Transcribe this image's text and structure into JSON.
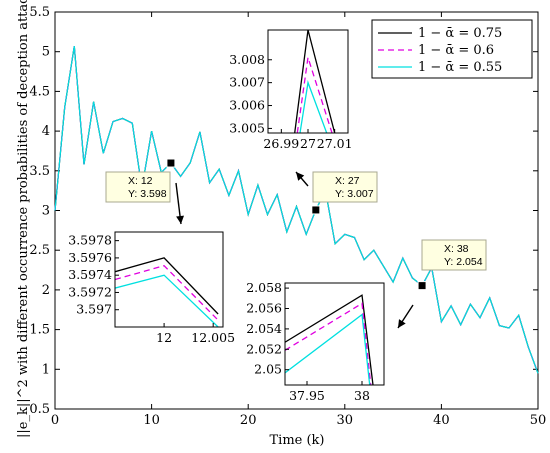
{
  "chart_data": {
    "type": "line",
    "xlabel": "Time (k)",
    "ylabel": "||e_k||^2 with different occurrence probabilities of deception attacks",
    "xlim": [
      0,
      50
    ],
    "ylim": [
      0.5,
      5.5
    ],
    "x_ticks": [
      "0",
      "10",
      "20",
      "30",
      "40",
      "50"
    ],
    "y_ticks": [
      "0.5",
      "1",
      "1.5",
      "2",
      "2.5",
      "3",
      "3.5",
      "4",
      "4.5",
      "5",
      "5.5"
    ],
    "x": [
      0,
      1,
      2,
      3,
      4,
      5,
      6,
      7,
      8,
      9,
      10,
      11,
      12,
      13,
      14,
      15,
      16,
      17,
      18,
      19,
      20,
      21,
      22,
      23,
      24,
      25,
      26,
      27,
      28,
      29,
      30,
      31,
      32,
      33,
      34,
      35,
      36,
      37,
      38,
      39,
      40,
      41,
      42,
      43,
      44,
      45,
      46,
      47,
      48,
      49,
      50
    ],
    "series": [
      {
        "name": "1 − ᾱ = 0.75",
        "color": "#000000",
        "dash": "solid",
        "values": [
          3.0,
          4.3,
          5.07,
          3.58,
          4.37,
          3.72,
          4.12,
          4.16,
          4.1,
          3.28,
          4.0,
          3.48,
          3.598,
          3.43,
          3.6,
          3.99,
          3.35,
          3.52,
          3.19,
          3.5,
          2.95,
          3.32,
          2.95,
          3.2,
          2.73,
          3.05,
          2.7,
          3.007,
          3.25,
          2.58,
          2.7,
          2.66,
          2.38,
          2.5,
          2.3,
          2.1,
          2.4,
          2.15,
          2.054,
          2.28,
          1.6,
          1.8,
          1.56,
          1.82,
          1.65,
          1.9,
          1.55,
          1.52,
          1.68,
          1.28,
          0.95
        ]
      },
      {
        "name": "1 − ᾱ = 0.6",
        "color": "#e000e0",
        "dash": "dashed",
        "values": [
          3.0,
          4.3,
          5.07,
          3.58,
          4.37,
          3.72,
          4.12,
          4.16,
          4.1,
          3.28,
          4.0,
          3.48,
          3.598,
          3.43,
          3.6,
          3.99,
          3.35,
          3.52,
          3.19,
          3.5,
          2.95,
          3.32,
          2.95,
          3.2,
          2.73,
          3.05,
          2.7,
          3.007,
          3.25,
          2.58,
          2.7,
          2.66,
          2.38,
          2.5,
          2.3,
          2.1,
          2.4,
          2.15,
          2.054,
          2.28,
          1.6,
          1.8,
          1.56,
          1.82,
          1.65,
          1.9,
          1.55,
          1.52,
          1.68,
          1.28,
          0.95
        ]
      },
      {
        "name": "1 − ᾱ = 0.55",
        "color": "#00e0e0",
        "dash": "solid",
        "values": [
          3.0,
          4.3,
          5.07,
          3.58,
          4.37,
          3.72,
          4.12,
          4.16,
          4.1,
          3.28,
          4.0,
          3.48,
          3.598,
          3.43,
          3.6,
          3.99,
          3.35,
          3.52,
          3.19,
          3.5,
          2.95,
          3.32,
          2.95,
          3.2,
          2.73,
          3.05,
          2.7,
          3.007,
          3.25,
          2.58,
          2.7,
          2.66,
          2.38,
          2.5,
          2.3,
          2.1,
          2.4,
          2.15,
          2.054,
          2.28,
          1.6,
          1.8,
          1.56,
          1.82,
          1.65,
          1.9,
          1.55,
          1.52,
          1.68,
          1.28,
          0.95
        ]
      }
    ],
    "legend_position": "top-right",
    "datatips": [
      {
        "x_label": "X: 12",
        "y_label": "Y: 3.598",
        "x": 12,
        "y": 3.598
      },
      {
        "x_label": "X: 27",
        "y_label": "Y: 3.007",
        "x": 27,
        "y": 3.007
      },
      {
        "x_label": "X: 38",
        "y_label": "Y: 2.054",
        "x": 38,
        "y": 2.054
      }
    ],
    "insets": [
      {
        "id": "inset-27",
        "x_ticks": [
          "26.99",
          "27",
          "27.01"
        ],
        "y_ticks": [
          "3.005",
          "3.006",
          "3.007",
          "3.008"
        ],
        "xlim": [
          26.985,
          27.015
        ],
        "ylim": [
          3.0048,
          3.0093
        ],
        "lines": [
          {
            "color": "#000000",
            "dash": "solid",
            "x": [
              26.995,
              27,
              27.01
            ],
            "y": [
              3.0048,
              3.0093,
              3.0048
            ]
          },
          {
            "color": "#e000e0",
            "dash": "dashed",
            "x": [
              26.996,
              27,
              27.009
            ],
            "y": [
              3.0048,
              3.0081,
              3.0048
            ]
          },
          {
            "color": "#00e0e0",
            "dash": "solid",
            "x": [
              26.997,
              27,
              27.007
            ],
            "y": [
              3.0048,
              3.007,
              3.0048
            ]
          }
        ]
      },
      {
        "id": "inset-12",
        "x_ticks": [
          "12",
          "12.005"
        ],
        "y_ticks": [
          "3.597",
          "3.5972",
          "3.5974",
          "3.5976",
          "3.5978"
        ],
        "xlim": [
          11.995,
          12.006
        ],
        "ylim": [
          3.5968,
          3.5979
        ],
        "lines": [
          {
            "color": "#000000",
            "dash": "solid",
            "x": [
              11.995,
              12,
              12.0055
            ],
            "y": [
              3.59744,
              3.5976,
              3.59695
            ]
          },
          {
            "color": "#e000e0",
            "dash": "dashed",
            "x": [
              11.995,
              12,
              12.0055
            ],
            "y": [
              3.59735,
              3.59751,
              3.59688
            ]
          },
          {
            "color": "#00e0e0",
            "dash": "solid",
            "x": [
              11.995,
              12,
              12.0055
            ],
            "y": [
              3.59725,
              3.5974,
              3.5968
            ]
          }
        ]
      },
      {
        "id": "inset-38",
        "x_ticks": [
          "37.95",
          "38"
        ],
        "y_ticks": [
          "2.05",
          "2.052",
          "2.054",
          "2.056",
          "2.058"
        ],
        "xlim": [
          37.93,
          38.02
        ],
        "ylim": [
          2.0485,
          2.0585
        ],
        "lines": [
          {
            "color": "#000000",
            "dash": "solid",
            "x": [
              37.93,
              38,
              38.01
            ],
            "y": [
              2.0527,
              2.0573,
              2.0485
            ]
          },
          {
            "color": "#e000e0",
            "dash": "dashed",
            "x": [
              37.93,
              38,
              38.008
            ],
            "y": [
              2.0519,
              2.0565,
              2.0485
            ]
          },
          {
            "color": "#00e0e0",
            "dash": "solid",
            "x": [
              37.93,
              38,
              38.007
            ],
            "y": [
              2.0497,
              2.0554,
              2.0485
            ]
          }
        ]
      }
    ]
  }
}
